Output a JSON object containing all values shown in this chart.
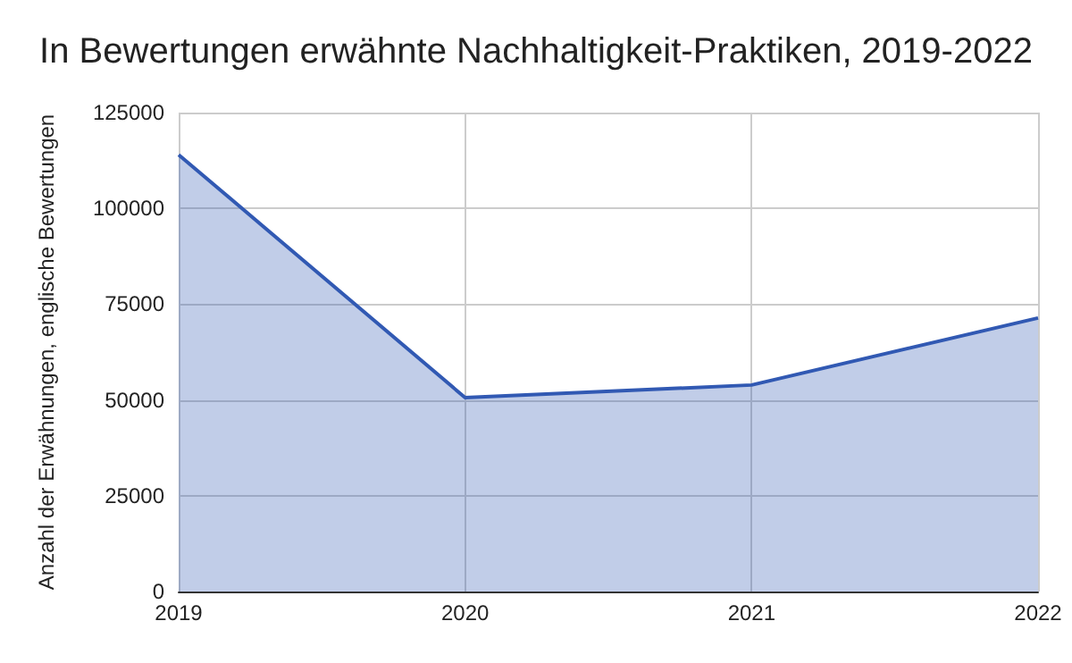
{
  "chart_data": {
    "type": "area",
    "title": "In Bewertungen erwähnte Nachhaltigkeit-Praktiken, 2019-2022",
    "ylabel": "Anzahl der Erwähnungen, englische Bewertungen",
    "categories": [
      "2019",
      "2020",
      "2021",
      "2022"
    ],
    "series": [
      {
        "color": "#3159b3",
        "values": [
          114000,
          50600,
          53900,
          71400
        ]
      }
    ],
    "ylim": [
      0,
      125000
    ],
    "yticks": [
      0,
      25000,
      50000,
      75000,
      100000,
      125000
    ],
    "grid": true,
    "marker": "none"
  }
}
